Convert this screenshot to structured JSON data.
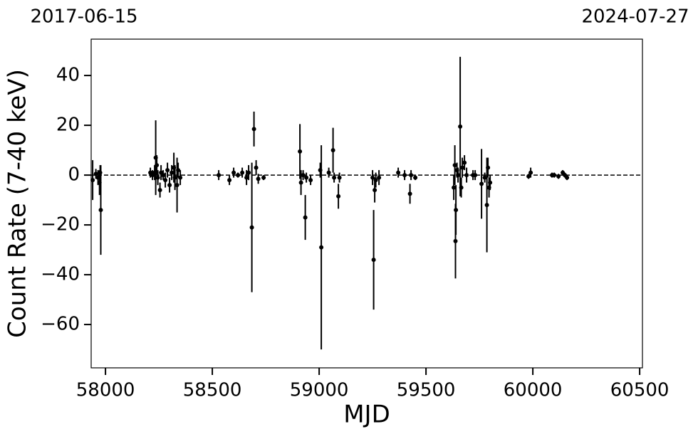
{
  "chart_data": {
    "type": "scatter",
    "annotations": [
      "2017-06-15",
      "2024-07-27"
    ],
    "xlabel": "MJD",
    "ylabel": "Count Rate (7-40 keV)",
    "color": "#000000",
    "hline": 0,
    "xlim": [
      57933,
      60513
    ],
    "ylim": [
      -77.4,
      54.6
    ],
    "xticks": [
      58000,
      58500,
      59000,
      59500,
      60000,
      60500
    ],
    "yticks": [
      {
        "value": -60,
        "label": "−60"
      },
      {
        "value": -40,
        "label": "−40"
      },
      {
        "value": -20,
        "label": "−20"
      },
      0,
      20,
      40
    ],
    "x": [
      57940,
      57955,
      57965,
      57972,
      57978,
      57975,
      58210,
      58220,
      58230,
      58235,
      58240,
      58245,
      58255,
      58260,
      58270,
      58280,
      58290,
      58300,
      58310,
      58320,
      58325,
      58335,
      58340,
      58350,
      58530,
      58580,
      58600,
      58620,
      58640,
      58660,
      58670,
      58685,
      58695,
      58705,
      58715,
      58740,
      58910,
      58915,
      58925,
      58935,
      58940,
      58960,
      59010,
      59005,
      59045,
      59065,
      59070,
      59090,
      59095,
      59250,
      59255,
      59260,
      59265,
      59280,
      59370,
      59400,
      59425,
      59430,
      59450,
      59630,
      59635,
      59640,
      59638,
      59645,
      59650,
      59660,
      59665,
      59670,
      59680,
      59690,
      59720,
      59730,
      59760,
      59775,
      59785,
      59790,
      59795,
      59800,
      59980,
      59990,
      60090,
      60100,
      60120,
      60140,
      60150,
      60160
    ],
    "values": [
      -2,
      0.5,
      -1,
      -3,
      -14,
      1,
      1,
      0,
      1,
      7,
      4,
      -1,
      -6,
      1,
      0,
      -2,
      2,
      -4,
      1,
      3,
      -1,
      -4,
      2,
      -1,
      0,
      -2,
      1,
      0,
      1,
      -1,
      1,
      -21,
      18.5,
      3,
      -1.5,
      -1,
      9.5,
      -3,
      0,
      -17,
      -1,
      -2,
      -29,
      2,
      1,
      10,
      -1,
      -8.5,
      -1,
      -1,
      -34,
      -6,
      -2,
      -1,
      1,
      0,
      -7.5,
      0,
      -1,
      -5,
      4,
      -14,
      -26.5,
      2,
      0,
      19.5,
      -5,
      3,
      5,
      0,
      0,
      0,
      -3.5,
      -1,
      -12,
      3,
      -5,
      -3,
      -0.5,
      1,
      0,
      0,
      -0.5,
      1,
      0,
      -1
    ],
    "errors": [
      8,
      2,
      3,
      5,
      18,
      3,
      2,
      2,
      3,
      15,
      4,
      3,
      3,
      3,
      2,
      3,
      3,
      3,
      3,
      6,
      5,
      11,
      3,
      3,
      2,
      2,
      2,
      1,
      2,
      3,
      3,
      26,
      7,
      3,
      2,
      1,
      11,
      5,
      2,
      9,
      2,
      2,
      41,
      3,
      2,
      9,
      2,
      5,
      2,
      3,
      20,
      5,
      3,
      3,
      2,
      2,
      4,
      2,
      1,
      5,
      8,
      10,
      15,
      3,
      3,
      28,
      4,
      4,
      3,
      3,
      2,
      2,
      14,
      2,
      19,
      4,
      4,
      3,
      1,
      2,
      1,
      1,
      1,
      1,
      1,
      1
    ]
  }
}
